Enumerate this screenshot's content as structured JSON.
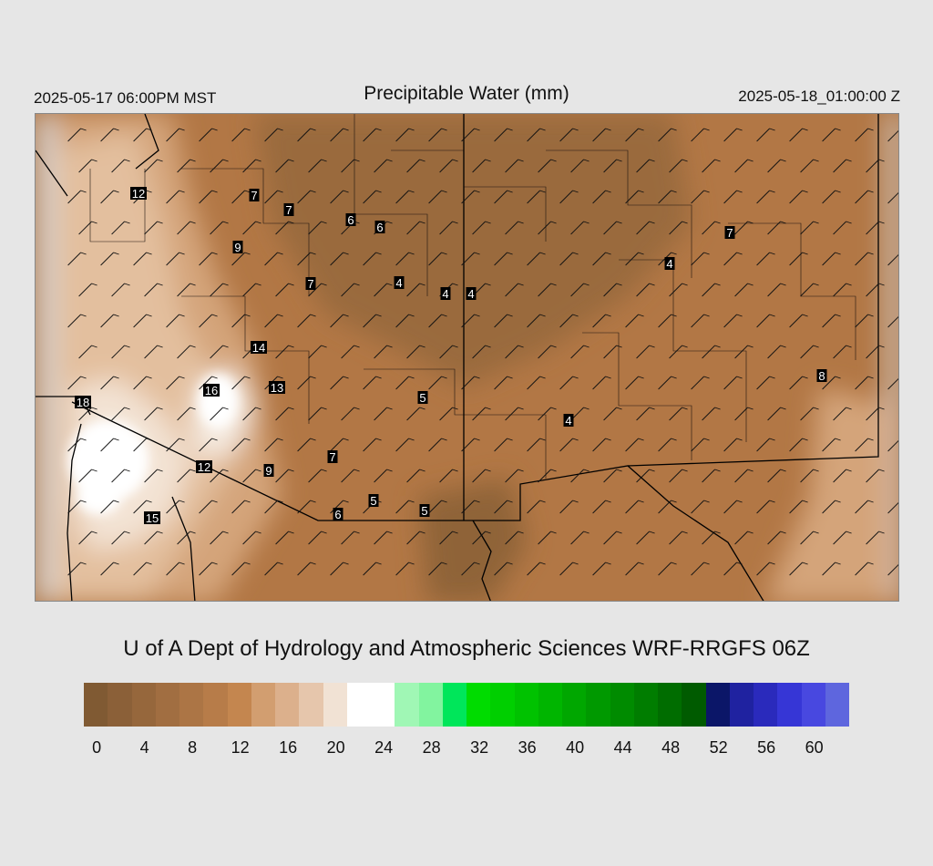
{
  "header": {
    "local_time": "2025-05-17 06:00PM MST",
    "title": "Precipitable Water (mm)",
    "valid_time": "2025-05-18_01:00:00 Z"
  },
  "credit": "U of A Dept of Hydrology and Atmospheric Sciences WRF-RRGFS 06Z",
  "colorbar": {
    "colors": [
      "#805a33",
      "#8b6038",
      "#96673c",
      "#a16e41",
      "#ac7545",
      "#b77c49",
      "#c4864f",
      "#d29e70",
      "#dcb08c",
      "#e6c6ac",
      "#f1e2d4",
      "#ffffff",
      "#ffffff",
      "#a0f7b5",
      "#82f49f",
      "#00e65a",
      "#00dc00",
      "#00cf00",
      "#00c200",
      "#00b500",
      "#00a700",
      "#009900",
      "#008b00",
      "#007d00",
      "#006d00",
      "#005b00",
      "#0b1668",
      "#1f22a0",
      "#2a2abc",
      "#3636d6",
      "#4848e0",
      "#5e66de"
    ],
    "tick_labels": [
      "0",
      "4",
      "8",
      "12",
      "16",
      "20",
      "24",
      "28",
      "32",
      "36",
      "40",
      "44",
      "48",
      "52",
      "56",
      "60"
    ]
  },
  "map_labels": [
    "12",
    "7",
    "7",
    "6",
    "6",
    "9",
    "7",
    "4",
    "4",
    "4",
    "14",
    "16",
    "13",
    "18",
    "5",
    "7",
    "12",
    "9",
    "5",
    "6",
    "5",
    "15",
    "4",
    "7",
    "4",
    "8"
  ],
  "map_colors": {
    "dry": "#8f6437",
    "brown": "#b07543",
    "tan": "#d8ab82",
    "light": "#eed8c4",
    "white": "#ffffff",
    "outside": "#d4d4d4"
  }
}
